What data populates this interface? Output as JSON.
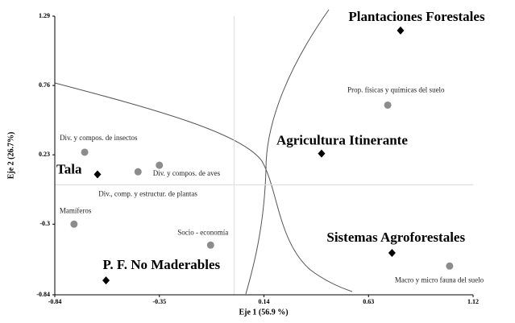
{
  "chart_data": {
    "type": "scatter",
    "xlabel": "Eje 1 (56.9 %)",
    "ylabel": "Eje 2 (26.7%)",
    "xlim": [
      -0.84,
      1.12
    ],
    "ylim": [
      -0.84,
      1.29
    ],
    "xticks": [
      -0.84,
      -0.35,
      0.14,
      0.63,
      1.12
    ],
    "yticks": [
      -0.84,
      -0.3,
      0.23,
      0.76,
      1.29
    ],
    "series": [
      {
        "color": "#000000",
        "marker": "diamond",
        "labels": [
          "Plantaciones Forestales",
          "Agricultura Itinerante",
          "Tala",
          "Sistemas Agroforestales",
          "P. F. No Maderables"
        ],
        "x": [
          0.78,
          0.41,
          -0.64,
          0.74,
          -0.6
        ],
        "values": [
          1.18,
          0.24,
          0.08,
          -0.52,
          -0.73
        ]
      },
      {
        "color": "#8c8c8c",
        "marker": "circle",
        "labels": [
          "Prop. físicas y químicas del suelo",
          "Div. y compos. de insectos",
          "Div. y compos. de aves",
          "Div., comp. y estructur. de plantas",
          "Mamíferos",
          "Socio - economía",
          "Macro y micro fauna del suelo"
        ],
        "x": [
          0.72,
          -0.7,
          -0.35,
          -0.45,
          -0.75,
          -0.11,
          1.01
        ],
        "values": [
          0.61,
          0.25,
          0.15,
          0.1,
          -0.3,
          -0.46,
          -0.62
        ]
      }
    ]
  }
}
